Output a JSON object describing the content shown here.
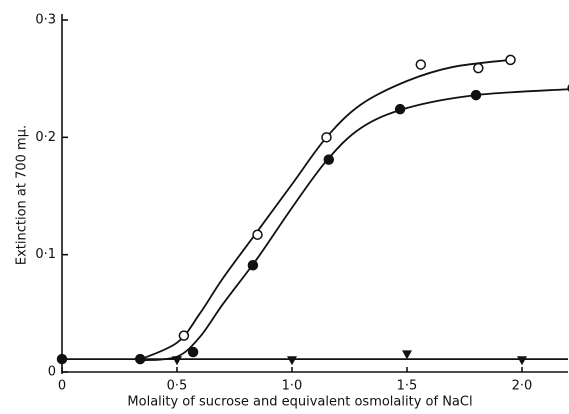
{
  "chart_data": {
    "type": "scatter",
    "x_label": "Molality of sucrose and equivalent osmolality of NaCl",
    "y_label": "Extinction at 700 mμ.",
    "xlim": [
      0,
      2.2
    ],
    "ylim": [
      0,
      0.3
    ],
    "xticks": [
      0,
      {
        "value": 0.5,
        "label": "0·5"
      },
      {
        "value": 1.0,
        "label": "1·0"
      },
      {
        "value": 1.5,
        "label": "1·5"
      },
      {
        "value": 2.0,
        "label": "2·0"
      }
    ],
    "yticks": [
      0,
      {
        "value": 0.1,
        "label": "0·1"
      },
      {
        "value": 0.2,
        "label": "0·2"
      },
      {
        "value": 0.3,
        "label": "0·3"
      }
    ],
    "color": "#111111",
    "series": [
      {
        "line": true,
        "x": [
          0.33,
          0.5,
          0.6,
          0.7,
          0.85,
          1.0,
          1.15,
          1.3,
          1.5,
          1.7,
          1.95
        ],
        "values": [
          0.01,
          0.025,
          0.05,
          0.08,
          0.12,
          0.16,
          0.2,
          0.228,
          0.248,
          0.26,
          0.266
        ]
      },
      {
        "line": true,
        "x": [
          0.35,
          0.5,
          0.6,
          0.7,
          0.85,
          1.0,
          1.15,
          1.3,
          1.5,
          1.8,
          2.2
        ],
        "values": [
          0.01,
          0.013,
          0.03,
          0.058,
          0.097,
          0.14,
          0.18,
          0.208,
          0.225,
          0.236,
          0.241
        ]
      },
      {
        "line": true,
        "x": [
          0,
          2.2
        ],
        "values": [
          0.011,
          0.011
        ]
      },
      {
        "marker": "open",
        "x": [
          0.53,
          0.85,
          1.15,
          1.56,
          1.81,
          1.95
        ],
        "values": [
          0.031,
          0.117,
          0.2,
          0.262,
          0.259,
          0.266
        ]
      },
      {
        "marker": "filled",
        "x": [
          0,
          0.34,
          0.57,
          0.83,
          1.16,
          1.47,
          1.8,
          2.22
        ],
        "values": [
          0.011,
          0.011,
          0.017,
          0.091,
          0.181,
          0.224,
          0.236,
          0.242
        ]
      },
      {
        "marker": "triangle",
        "x": [
          0.5,
          1.0,
          1.5,
          2.0
        ],
        "values": [
          0.01,
          0.01,
          0.015,
          0.01
        ]
      }
    ]
  }
}
